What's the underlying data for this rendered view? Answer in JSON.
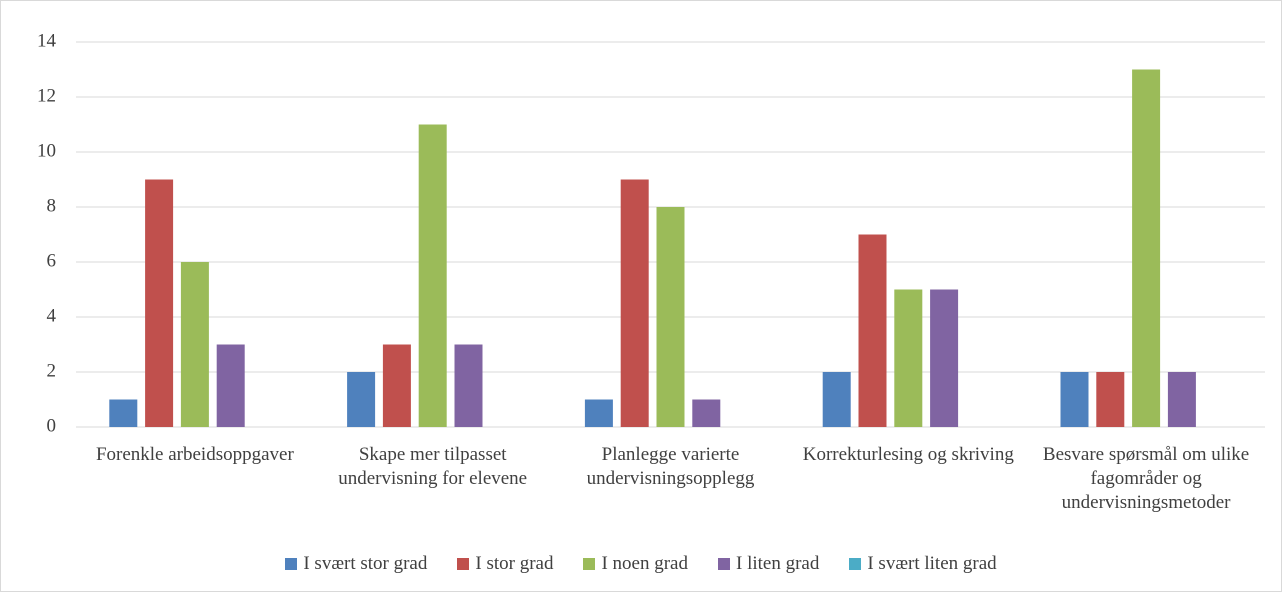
{
  "chart_data": {
    "type": "bar",
    "categories": [
      "Forenkle arbeidsoppgaver",
      "Skape mer tilpasset undervisning for elevene",
      "Planlegge varierte undervisningsopplegg",
      "Korrekturlesing og skriving",
      "Besvare spørsmål om ulike fagområder og undervisningsmetoder"
    ],
    "series": [
      {
        "name": "I svært stor grad",
        "color": "#4f81bd",
        "values": [
          1,
          2,
          1,
          2,
          2
        ]
      },
      {
        "name": "I stor grad",
        "color": "#c0504d",
        "values": [
          9,
          3,
          9,
          7,
          2
        ]
      },
      {
        "name": "I noen grad",
        "color": "#9bbb59",
        "values": [
          6,
          11,
          8,
          5,
          13
        ]
      },
      {
        "name": "I liten grad",
        "color": "#8064a2",
        "values": [
          3,
          3,
          1,
          5,
          2
        ]
      },
      {
        "name": "I svært liten grad",
        "color": "#4bacc6",
        "values": [
          0,
          0,
          0,
          0,
          0
        ]
      }
    ],
    "ylim": [
      0,
      14
    ],
    "yticks": [
      0,
      2,
      4,
      6,
      8,
      10,
      12,
      14
    ],
    "grid": true,
    "legend": "bottom"
  }
}
